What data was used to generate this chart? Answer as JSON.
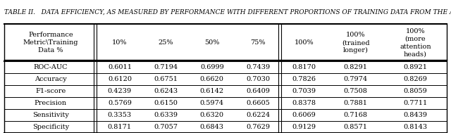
{
  "title": "TABLE II.   DATA EFFICIENCY, AS MEASURED BY PERFORMANCE WITH DIFFERENT PROPORTIONS OF TRAINING DATA FROM THE ADNI DATA",
  "col_headers": [
    "Performance\nMetric\\Training\nData %",
    "10%",
    "25%",
    "50%",
    "75%",
    "100%",
    "100%\n(trained\nlonger)",
    "100%\n(more\nattention\nheads)"
  ],
  "rows": [
    [
      "ROC-AUC",
      "0.6011",
      "0.7194",
      "0.6999",
      "0.7439",
      "0.8170",
      "0.8291",
      "0.8921"
    ],
    [
      "Accuracy",
      "0.6120",
      "0.6751",
      "0.6620",
      "0.7030",
      "0.7826",
      "0.7974",
      "0.8269"
    ],
    [
      "F1-score",
      "0.4239",
      "0.6243",
      "0.6142",
      "0.6409",
      "0.7039",
      "0.7508",
      "0.8059"
    ],
    [
      "Precision",
      "0.5769",
      "0.6150",
      "0.5974",
      "0.6605",
      "0.8378",
      "0.7881",
      "0.7711"
    ],
    [
      "Sensitivity",
      "0.3353",
      "0.6339",
      "0.6320",
      "0.6224",
      "0.6069",
      "0.7168",
      "0.8439"
    ],
    [
      "Specificity",
      "0.8171",
      "0.7057",
      "0.6843",
      "0.7629",
      "0.9129",
      "0.8571",
      "0.8143"
    ]
  ],
  "col_widths": [
    1.7,
    0.85,
    0.85,
    0.85,
    0.85,
    0.85,
    1.05,
    1.15
  ],
  "title_fontsize": 6.5,
  "cell_fontsize": 7.0,
  "header_fontsize": 7.0,
  "background_color": "#ffffff",
  "text_color": "#000000"
}
